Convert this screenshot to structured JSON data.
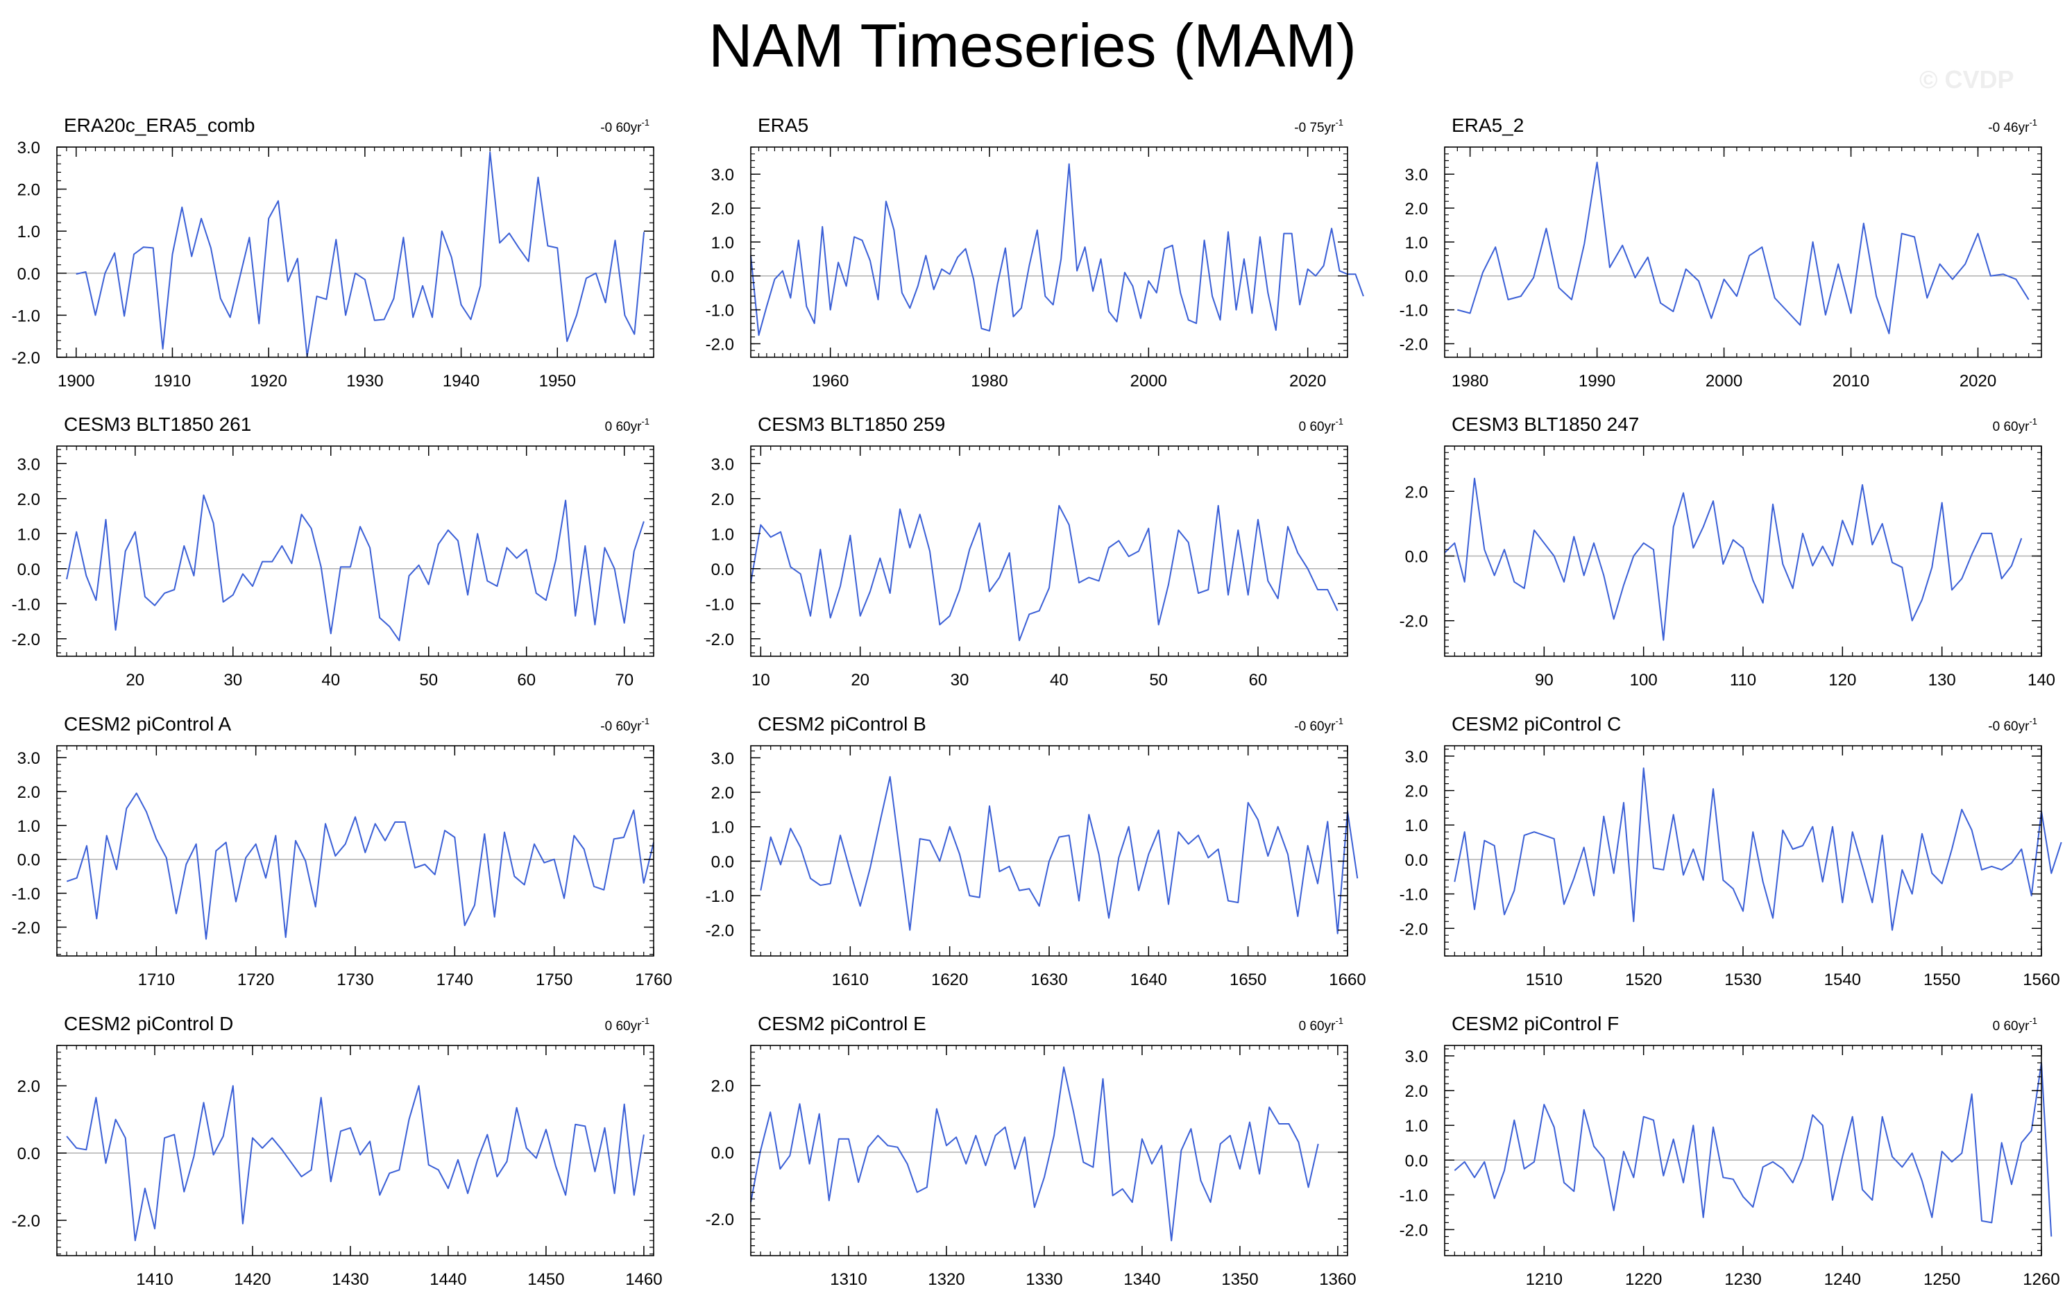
{
  "figure": {
    "title": "NAM Timeseries (MAM)",
    "watermark": "© CVDP",
    "line_color": "#3a5fd6",
    "zero_line_color": "#b0b0b0"
  },
  "chart_data": [
    {
      "type": "line",
      "title": "ERA20c_ERA5_comb",
      "trend_label": "-0 60yr",
      "trend_sup": "-1",
      "xlim": [
        1898,
        1960
      ],
      "xticks": [
        1900,
        1910,
        1920,
        1930,
        1940,
        1950
      ],
      "ylim": [
        -2,
        3
      ],
      "yticks": [
        -2,
        -1,
        0,
        1,
        2,
        3
      ],
      "ytick_labels": [
        "-2.0",
        "-1.0",
        "0.0",
        "1.0",
        "2.0",
        "3.0"
      ],
      "x_start": 1900,
      "values": [
        -0.02,
        0.03,
        -1.0,
        0.0,
        0.48,
        -1.02,
        0.45,
        0.62,
        0.6,
        -1.8,
        0.45,
        1.57,
        0.4,
        1.3,
        0.6,
        -0.6,
        -1.05,
        -0.1,
        0.85,
        -1.2,
        1.3,
        1.72,
        -0.2,
        0.35,
        -1.98,
        -0.55,
        -0.62,
        0.8,
        -1.0,
        0.0,
        -0.15,
        -1.12,
        -1.1,
        -0.6,
        0.85,
        -1.05,
        -0.3,
        -1.05,
        1.0,
        0.38,
        -0.75,
        -1.1,
        -0.3,
        2.88,
        0.72,
        0.95,
        0.6,
        0.28,
        2.28,
        0.65,
        0.6,
        -1.62,
        -1.0,
        -0.12,
        0.0,
        -0.7,
        0.78,
        -1.0,
        -1.45,
        0.98
      ]
    },
    {
      "type": "line",
      "title": "ERA5",
      "trend_label": "-0 75yr",
      "trend_sup": "-1",
      "xlim": [
        1950,
        2025
      ],
      "xticks": [
        1960,
        1980,
        2000,
        2020
      ],
      "ylim": [
        -2.4,
        3.8
      ],
      "yticks": [
        -2,
        -1,
        0,
        1,
        2,
        3
      ],
      "ytick_labels": [
        "-2.0",
        "-1.0",
        "0.0",
        "1.0",
        "2.0",
        "3.0"
      ],
      "x_start": 1950,
      "values": [
        0.6,
        -1.75,
        -0.9,
        -0.1,
        0.15,
        -0.65,
        1.05,
        -0.9,
        -1.4,
        1.45,
        -1.0,
        0.4,
        -0.3,
        1.15,
        1.05,
        0.45,
        -0.7,
        2.2,
        1.35,
        -0.5,
        -0.95,
        -0.3,
        0.6,
        -0.4,
        0.2,
        0.05,
        0.55,
        0.8,
        -0.1,
        -1.55,
        -1.62,
        -0.25,
        0.82,
        -1.2,
        -0.95,
        0.3,
        1.35,
        -0.6,
        -0.85,
        0.5,
        3.3,
        0.15,
        0.85,
        -0.45,
        0.5,
        -1.05,
        -1.35,
        0.1,
        -0.3,
        -1.25,
        -0.15,
        -0.5,
        0.8,
        0.9,
        -0.5,
        -1.3,
        -1.4,
        1.05,
        -0.6,
        -1.3,
        1.3,
        -1.0,
        0.5,
        -1.1,
        1.15,
        -0.5,
        -1.6,
        1.25,
        1.25,
        -0.85,
        0.2,
        0.0,
        0.3,
        1.4,
        0.15,
        0.05,
        0.05,
        -0.6
      ]
    },
    {
      "type": "line",
      "title": "ERA5_2",
      "trend_label": "-0 46yr",
      "trend_sup": "-1",
      "xlim": [
        1978,
        2025
      ],
      "xticks": [
        1980,
        1990,
        2000,
        2010,
        2020
      ],
      "ylim": [
        -2.4,
        3.8
      ],
      "yticks": [
        -2,
        -1,
        0,
        1,
        2,
        3
      ],
      "ytick_labels": [
        "-2.0",
        "-1.0",
        "0.0",
        "1.0",
        "2.0",
        "3.0"
      ],
      "x_start": 1979,
      "values": [
        -1.0,
        -1.1,
        0.1,
        0.85,
        -0.7,
        -0.6,
        -0.05,
        1.4,
        -0.35,
        -0.7,
        0.95,
        3.35,
        0.25,
        0.9,
        -0.05,
        0.55,
        -0.8,
        -1.05,
        0.2,
        -0.15,
        -1.25,
        -0.1,
        -0.6,
        0.6,
        0.85,
        -0.65,
        -1.05,
        -1.45,
        1.0,
        -1.15,
        0.35,
        -1.1,
        1.55,
        -0.6,
        -1.7,
        1.25,
        1.15,
        -0.65,
        0.35,
        -0.1,
        0.35,
        1.25,
        0.0,
        0.05,
        -0.1,
        -0.7
      ]
    },
    {
      "type": "line",
      "title": "CESM3 BLT1850 261",
      "trend_label": "0 60yr",
      "trend_sup": "-1",
      "xlim": [
        12,
        73
      ],
      "xticks": [
        20,
        30,
        40,
        50,
        60,
        70
      ],
      "ylim": [
        -2.5,
        3.5
      ],
      "yticks": [
        -2,
        -1,
        0,
        1,
        2,
        3
      ],
      "ytick_labels": [
        "-2.0",
        "-1.0",
        "0.0",
        "1.0",
        "2.0",
        "3.0"
      ],
      "x_start": 13,
      "values": [
        -0.3,
        1.05,
        -0.2,
        -0.9,
        1.4,
        -1.75,
        0.5,
        1.05,
        -0.8,
        -1.05,
        -0.7,
        -0.6,
        0.65,
        -0.2,
        2.1,
        1.3,
        -0.95,
        -0.75,
        -0.15,
        -0.5,
        0.2,
        0.2,
        0.65,
        0.15,
        1.55,
        1.15,
        0.05,
        -1.85,
        0.05,
        0.05,
        1.2,
        0.6,
        -1.4,
        -1.65,
        -2.05,
        -0.2,
        0.1,
        -0.45,
        0.7,
        1.1,
        0.8,
        -0.75,
        1.0,
        -0.35,
        -0.5,
        0.6,
        0.3,
        0.55,
        -0.7,
        -0.9,
        0.25,
        1.95,
        -1.35,
        0.65,
        -1.6,
        0.6,
        0.0,
        -1.55,
        0.5,
        1.35
      ]
    },
    {
      "type": "line",
      "title": "CESM3 BLT1850 259",
      "trend_label": "0 60yr",
      "trend_sup": "-1",
      "xlim": [
        9,
        69
      ],
      "xticks": [
        10,
        20,
        30,
        40,
        50,
        60
      ],
      "ylim": [
        -2.5,
        3.5
      ],
      "yticks": [
        -2,
        -1,
        0,
        1,
        2,
        3
      ],
      "ytick_labels": [
        "-2.0",
        "-1.0",
        "0.0",
        "1.0",
        "2.0",
        "3.0"
      ],
      "x_start": 9,
      "values": [
        -0.4,
        1.25,
        0.9,
        1.05,
        0.05,
        -0.15,
        -1.35,
        0.55,
        -1.4,
        -0.5,
        0.95,
        -1.35,
        -0.65,
        0.3,
        -0.7,
        1.7,
        0.6,
        1.55,
        0.5,
        -1.6,
        -1.35,
        -0.6,
        0.55,
        1.3,
        -0.65,
        -0.25,
        0.45,
        -2.05,
        -1.3,
        -1.2,
        -0.55,
        1.8,
        1.25,
        -0.4,
        -0.25,
        -0.35,
        0.6,
        0.8,
        0.35,
        0.5,
        1.15,
        -1.6,
        -0.45,
        1.1,
        0.75,
        -0.7,
        -0.6,
        1.8,
        -0.75,
        1.1,
        -0.75,
        1.4,
        -0.35,
        -0.85,
        1.2,
        0.45,
        0.0,
        -0.6,
        -0.6,
        -1.2
      ]
    },
    {
      "type": "line",
      "title": "CESM3 BLT1850 247",
      "trend_label": "0 60yr",
      "trend_sup": "-1",
      "xlim": [
        80,
        140
      ],
      "xticks": [
        90,
        100,
        110,
        120,
        130,
        140
      ],
      "ylim": [
        -3.1,
        3.4
      ],
      "yticks": [
        -2,
        0,
        2
      ],
      "ytick_labels": [
        "-2.0",
        "0.0",
        "2.0"
      ],
      "x_start": 80,
      "values": [
        0.1,
        0.4,
        -0.8,
        2.4,
        0.2,
        -0.6,
        0.2,
        -0.8,
        -1.0,
        0.8,
        0.4,
        0.0,
        -0.8,
        0.6,
        -0.6,
        0.4,
        -0.6,
        -1.95,
        -0.9,
        0.0,
        0.4,
        0.2,
        -2.6,
        0.9,
        1.95,
        0.25,
        0.9,
        1.7,
        -0.25,
        0.5,
        0.25,
        -0.75,
        -1.45,
        1.6,
        -0.25,
        -1.0,
        0.7,
        -0.3,
        0.3,
        -0.3,
        1.1,
        0.35,
        2.2,
        0.35,
        1.0,
        -0.2,
        -0.35,
        -2.0,
        -1.35,
        -0.35,
        1.65,
        -1.05,
        -0.7,
        0.05,
        0.7,
        0.7,
        -0.7,
        -0.3,
        0.55
      ]
    },
    {
      "type": "line",
      "title": "CESM2 piControl A",
      "trend_label": "-0 60yr",
      "trend_sup": "-1",
      "xlim": [
        1700,
        1760
      ],
      "xticks": [
        1710,
        1720,
        1730,
        1740,
        1750,
        1760
      ],
      "ylim": [
        -2.85,
        3.35
      ],
      "yticks": [
        -2,
        -1,
        0,
        1,
        2,
        3
      ],
      "ytick_labels": [
        "-2.0",
        "-1.0",
        "0.0",
        "1.0",
        "2.0",
        "3.0"
      ],
      "x_start": 1701,
      "values": [
        -0.65,
        -0.55,
        0.4,
        -1.75,
        0.7,
        -0.3,
        1.5,
        1.95,
        1.4,
        0.6,
        0.05,
        -1.6,
        -0.15,
        0.45,
        -2.35,
        0.25,
        0.5,
        -1.25,
        0.05,
        0.45,
        -0.55,
        0.7,
        -2.3,
        0.55,
        -0.05,
        -1.4,
        1.05,
        0.1,
        0.45,
        1.25,
        0.2,
        1.05,
        0.55,
        1.1,
        1.1,
        -0.25,
        -0.15,
        -0.45,
        0.85,
        0.65,
        -1.95,
        -1.35,
        0.75,
        -1.7,
        0.8,
        -0.5,
        -0.75,
        0.45,
        -0.1,
        0.0,
        -1.15,
        0.7,
        0.3,
        -0.8,
        -0.9,
        0.6,
        0.65,
        1.45,
        -0.7,
        0.5
      ]
    },
    {
      "type": "line",
      "title": "CESM2 piControl B",
      "trend_label": "-0 60yr",
      "trend_sup": "-1",
      "xlim": [
        1600,
        1660
      ],
      "xticks": [
        1610,
        1620,
        1630,
        1640,
        1650,
        1660
      ],
      "ylim": [
        -2.75,
        3.35
      ],
      "yticks": [
        -2,
        -1,
        0,
        1,
        2,
        3
      ],
      "ytick_labels": [
        "-2.0",
        "-1.0",
        "0.0",
        "1.0",
        "2.0",
        "3.0"
      ],
      "x_start": 1601,
      "values": [
        -0.85,
        0.7,
        -0.1,
        0.95,
        0.4,
        -0.5,
        -0.7,
        -0.65,
        0.75,
        -0.3,
        -1.3,
        -0.2,
        1.15,
        2.45,
        0.2,
        -2.0,
        0.65,
        0.6,
        0.0,
        1.0,
        0.2,
        -1.0,
        -1.05,
        1.6,
        -0.3,
        -0.15,
        -0.85,
        -0.8,
        -1.3,
        0.0,
        0.7,
        0.75,
        -1.15,
        1.35,
        0.2,
        -1.65,
        0.1,
        1.0,
        -0.85,
        0.2,
        0.9,
        -1.25,
        0.85,
        0.5,
        0.75,
        0.1,
        0.35,
        -1.15,
        -1.2,
        1.7,
        1.2,
        0.15,
        1.0,
        0.2,
        -1.6,
        0.45,
        -0.65,
        1.15,
        -2.1,
        1.45,
        -0.5
      ]
    },
    {
      "type": "line",
      "title": "CESM2 piControl C",
      "trend_label": "-0 60yr",
      "trend_sup": "-1",
      "xlim": [
        1500,
        1560
      ],
      "xticks": [
        1510,
        1520,
        1530,
        1540,
        1550,
        1560
      ],
      "ylim": [
        -2.8,
        3.3
      ],
      "yticks": [
        -2,
        -1,
        0,
        1,
        2,
        3
      ],
      "ytick_labels": [
        "-2.0",
        "-1.0",
        "0.0",
        "1.0",
        "2.0",
        "3.0"
      ],
      "x_start": 1501,
      "values": [
        -0.65,
        0.8,
        -1.45,
        0.55,
        0.4,
        -1.6,
        -0.9,
        0.7,
        0.8,
        0.7,
        0.6,
        -1.3,
        -0.55,
        0.35,
        -1.05,
        1.25,
        -0.4,
        1.65,
        -1.8,
        2.65,
        -0.25,
        -0.3,
        1.3,
        -0.45,
        0.3,
        -0.6,
        2.05,
        -0.6,
        -0.85,
        -1.5,
        0.8,
        -0.65,
        -1.7,
        0.85,
        0.3,
        0.4,
        0.95,
        -0.65,
        0.95,
        -1.25,
        0.8,
        -0.2,
        -1.25,
        0.7,
        -2.05,
        -0.3,
        -1.0,
        0.75,
        -0.4,
        -0.7,
        0.3,
        1.45,
        0.85,
        -0.3,
        -0.2,
        -0.3,
        -0.1,
        0.3,
        -1.05,
        1.4,
        -0.4,
        0.5
      ]
    },
    {
      "type": "line",
      "title": "CESM2 piControl D",
      "trend_label": "0 60yr",
      "trend_sup": "-1",
      "xlim": [
        1400,
        1461
      ],
      "xticks": [
        1410,
        1420,
        1430,
        1440,
        1450,
        1460
      ],
      "ylim": [
        -3.05,
        3.2
      ],
      "yticks": [
        -2,
        0,
        2
      ],
      "ytick_labels": [
        "-2.0",
        "0.0",
        "2.0"
      ],
      "x_start": 1401,
      "values": [
        0.5,
        0.15,
        0.1,
        1.65,
        -0.3,
        1.0,
        0.45,
        -2.6,
        -1.05,
        -2.25,
        0.45,
        0.55,
        -1.15,
        -0.1,
        1.5,
        -0.05,
        0.5,
        2.0,
        -2.1,
        0.45,
        0.15,
        0.45,
        0.1,
        -0.3,
        -0.7,
        -0.5,
        1.65,
        -0.85,
        0.65,
        0.75,
        -0.05,
        0.35,
        -1.25,
        -0.6,
        -0.5,
        1.0,
        2.0,
        -0.35,
        -0.5,
        -1.05,
        -0.2,
        -1.2,
        -0.2,
        0.55,
        -0.7,
        -0.25,
        1.35,
        0.15,
        -0.15,
        0.7,
        -0.4,
        -1.25,
        0.85,
        0.8,
        -0.55,
        0.75,
        -1.2,
        1.45,
        -1.25,
        0.55
      ]
    },
    {
      "type": "line",
      "title": "CESM2 piControl E",
      "trend_label": "0 60yr",
      "trend_sup": "-1",
      "xlim": [
        1300,
        1361
      ],
      "xticks": [
        1310,
        1320,
        1330,
        1340,
        1350,
        1360
      ],
      "ylim": [
        -3.1,
        3.2
      ],
      "yticks": [
        -2,
        0,
        2
      ],
      "ytick_labels": [
        "-2.0",
        "0.0",
        "2.0"
      ],
      "x_start": 1300,
      "values": [
        -1.5,
        0.05,
        1.2,
        -0.5,
        -0.1,
        1.45,
        -0.35,
        1.15,
        -1.45,
        0.4,
        0.4,
        -0.9,
        0.15,
        0.5,
        0.2,
        0.15,
        -0.35,
        -1.2,
        -1.05,
        1.3,
        0.2,
        0.45,
        -0.35,
        0.5,
        -0.4,
        0.5,
        0.75,
        -0.5,
        0.45,
        -1.65,
        -0.75,
        0.5,
        2.55,
        1.2,
        -0.3,
        -0.45,
        2.2,
        -1.3,
        -1.1,
        -1.5,
        0.4,
        -0.35,
        0.2,
        -2.65,
        0.05,
        0.7,
        -0.85,
        -1.5,
        0.25,
        0.5,
        -0.5,
        0.9,
        -0.65,
        1.35,
        0.85,
        0.85,
        0.3,
        -1.05,
        0.25
      ]
    },
    {
      "type": "line",
      "title": "CESM2 piControl F",
      "trend_label": "0 60yr",
      "trend_sup": "-1",
      "xlim": [
        1200,
        1260
      ],
      "xticks": [
        1210,
        1220,
        1230,
        1240,
        1250,
        1260
      ],
      "ylim": [
        -2.75,
        3.3
      ],
      "yticks": [
        -2,
        -1,
        0,
        1,
        2,
        3
      ],
      "ytick_labels": [
        "-2.0",
        "-1.0",
        "0.0",
        "1.0",
        "2.0",
        "3.0"
      ],
      "x_start": 1201,
      "values": [
        -0.3,
        -0.05,
        -0.5,
        -0.05,
        -1.1,
        -0.3,
        1.15,
        -0.25,
        -0.05,
        1.6,
        0.95,
        -0.65,
        -0.9,
        1.45,
        0.4,
        0.05,
        -1.45,
        0.25,
        -0.5,
        1.25,
        1.15,
        -0.45,
        0.6,
        -0.65,
        1.0,
        -1.65,
        0.95,
        -0.5,
        -0.55,
        -1.05,
        -1.35,
        -0.2,
        -0.05,
        -0.25,
        -0.65,
        0.05,
        1.3,
        1.0,
        -1.15,
        0.1,
        1.25,
        -0.85,
        -1.15,
        1.25,
        0.1,
        -0.2,
        0.2,
        -0.6,
        -1.65,
        0.25,
        -0.05,
        0.2,
        1.9,
        -1.75,
        -1.8,
        0.5,
        -0.7,
        0.5,
        0.85,
        2.8,
        -2.2
      ]
    }
  ]
}
